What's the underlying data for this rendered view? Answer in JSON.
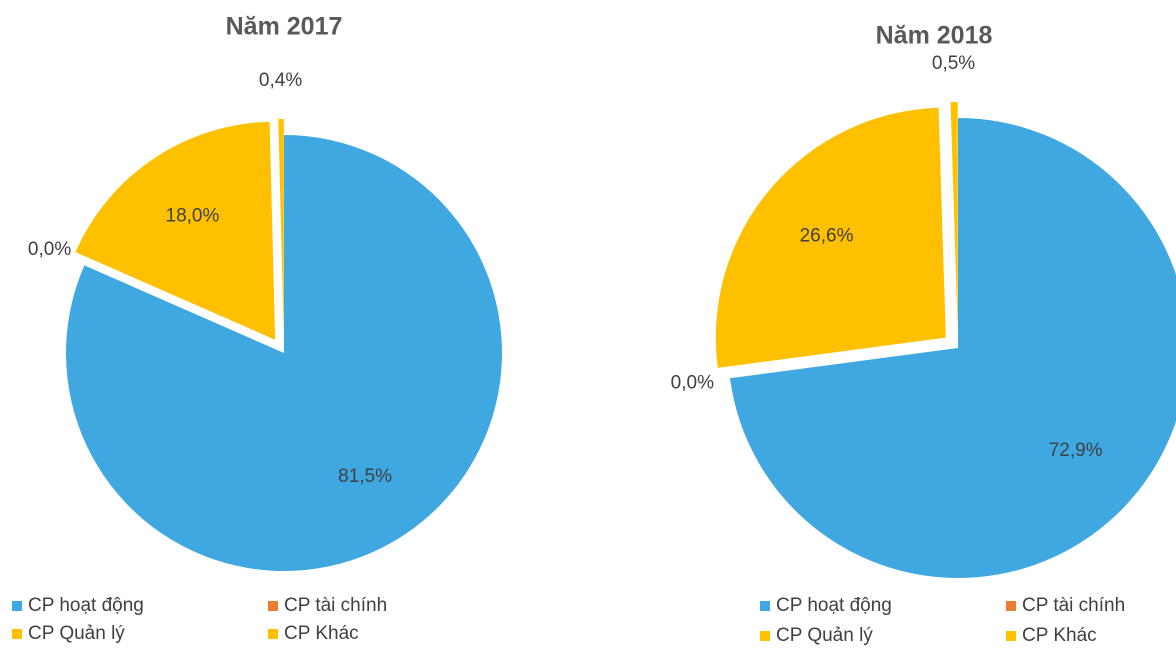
{
  "chart_data": [
    {
      "type": "pie",
      "title": "Năm 2017",
      "categories": [
        "CP hoạt động",
        "CP tài chính",
        "CP Quản lý",
        "CP Khác"
      ],
      "values": [
        81.5,
        0.0,
        18.0,
        0.4
      ],
      "value_labels": [
        "81,5%",
        "0,0%",
        "18,0%",
        "0,4%"
      ],
      "colors": [
        "#3FA8E0",
        "#ED7D31",
        "#FFC000",
        "#FFC000"
      ],
      "exploded": [
        false,
        false,
        true,
        true
      ]
    },
    {
      "type": "pie",
      "title": "Năm 2018",
      "categories": [
        "CP hoạt động",
        "CP tài chính",
        "CP Quản lý",
        "CP Khác"
      ],
      "values": [
        72.9,
        0.0,
        26.6,
        0.5
      ],
      "value_labels": [
        "72,9%",
        "0,0%",
        "26,6%",
        "0,5%"
      ],
      "colors": [
        "#3FA8E0",
        "#ED7D31",
        "#FFC000",
        "#FFC000"
      ],
      "exploded": [
        false,
        false,
        true,
        true
      ]
    }
  ]
}
